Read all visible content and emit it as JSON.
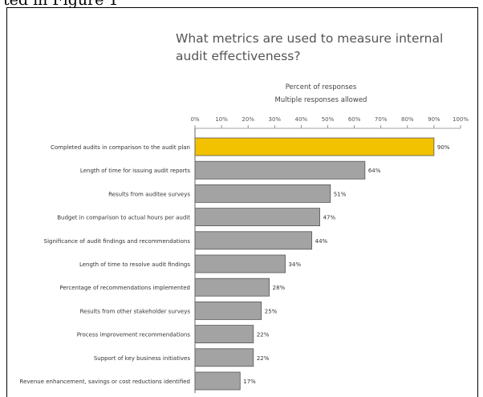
{
  "caption_fragment": "ted in Figure 1",
  "chart_data": {
    "type": "bar",
    "orientation": "horizontal",
    "title": "What metrics are used to measure internal audit effectiveness?",
    "subtitle_lines": [
      "Percent of responses",
      "Multiple responses allowed"
    ],
    "x_ticks": [
      "0%",
      "10%",
      "20%",
      "30%",
      "40%",
      "50%",
      "60%",
      "70%",
      "80%",
      "90%",
      "100%"
    ],
    "xlim": [
      0,
      100
    ],
    "categories": [
      "Completed audits in comparison to the audit plan",
      "Length of time for issuing audit reports",
      "Results from auditee surveys",
      "Budget in comparison to actual hours per audit",
      "Significance of audit findings and recommendations",
      "Length of time to resolve audit findings",
      "Percentage of recommendations implemented",
      "Results from other stakeholder surveys",
      "Process improvement recommendations",
      "Support of key business initiatives",
      "Revenue enhancement, savings or cost reductions identified"
    ],
    "values": [
      90,
      64,
      51,
      47,
      44,
      34,
      28,
      25,
      22,
      22,
      17
    ],
    "value_labels": [
      "90%",
      "64%",
      "51%",
      "47%",
      "44%",
      "34%",
      "28%",
      "25%",
      "22%",
      "22%",
      "17%"
    ],
    "highlight_color": "#f2c200",
    "bar_color": "#a3a3a3",
    "grid": false
  }
}
